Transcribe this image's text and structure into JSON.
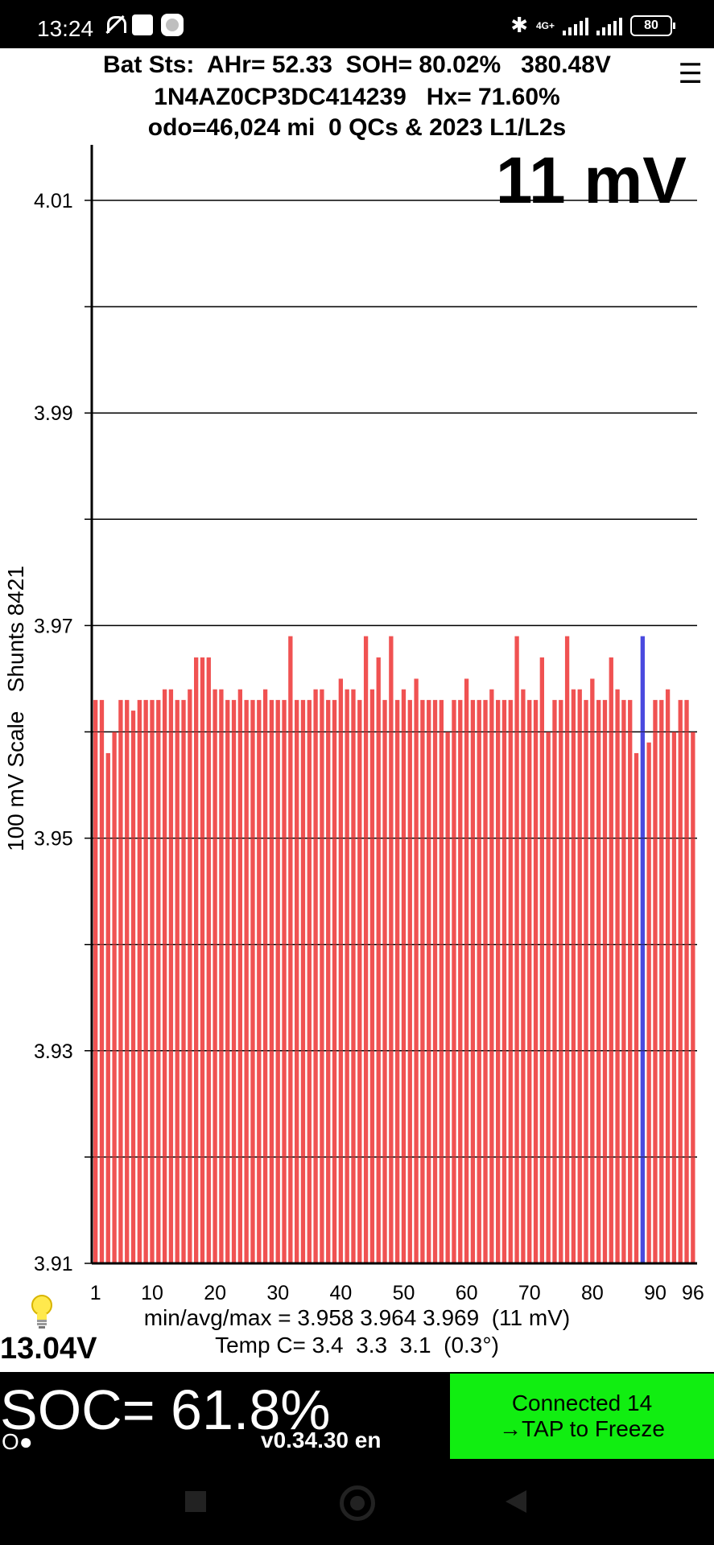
{
  "status_bar": {
    "time": "13:24",
    "network": "4G+",
    "battery": "80"
  },
  "header": {
    "line1": "Bat Sts:  AHr= 52.33  SOH= 80.02%   380.48V",
    "line2": "1N4AZ0CP3DC414239   Hx= 71.60%",
    "line3": "odo=46,024 mi  0 QCs & 2023 L1/L2s",
    "menu_icon": "☰"
  },
  "cell_spread": "11 mV",
  "y_axis_title": "100 mV Scale   Shunts 8421",
  "chart_data": {
    "type": "bar",
    "ylim": [
      3.91,
      4.015
    ],
    "yticks": [
      "4.01",
      "3.99",
      "3.97",
      "3.95",
      "3.93",
      "3.91"
    ],
    "ytick_values": [
      4.01,
      3.99,
      3.97,
      3.95,
      3.93,
      3.91
    ],
    "gridlines": [
      4.01,
      4.0,
      3.99,
      3.98,
      3.97,
      3.96,
      3.95,
      3.94,
      3.93,
      3.92,
      3.91
    ],
    "xticks": [
      "1",
      "10",
      "20",
      "30",
      "40",
      "50",
      "60",
      "70",
      "80",
      "90",
      "96"
    ],
    "xtick_values": [
      1,
      10,
      20,
      30,
      40,
      50,
      60,
      70,
      80,
      90,
      96
    ],
    "bar_color": "#f05252",
    "highlight_color": "#4a4adf",
    "highlight_cell": 88,
    "values": [
      3.963,
      3.963,
      3.958,
      3.96,
      3.963,
      3.963,
      3.962,
      3.963,
      3.963,
      3.963,
      3.963,
      3.964,
      3.964,
      3.963,
      3.963,
      3.964,
      3.967,
      3.967,
      3.967,
      3.964,
      3.964,
      3.963,
      3.963,
      3.964,
      3.963,
      3.963,
      3.963,
      3.964,
      3.963,
      3.963,
      3.963,
      3.969,
      3.963,
      3.963,
      3.963,
      3.964,
      3.964,
      3.963,
      3.963,
      3.965,
      3.964,
      3.964,
      3.963,
      3.969,
      3.964,
      3.967,
      3.963,
      3.969,
      3.963,
      3.964,
      3.963,
      3.965,
      3.963,
      3.963,
      3.963,
      3.963,
      3.96,
      3.963,
      3.963,
      3.965,
      3.963,
      3.963,
      3.963,
      3.964,
      3.963,
      3.963,
      3.963,
      3.969,
      3.964,
      3.963,
      3.963,
      3.967,
      3.96,
      3.963,
      3.963,
      3.969,
      3.964,
      3.964,
      3.963,
      3.965,
      3.963,
      3.963,
      3.967,
      3.964,
      3.963,
      3.963,
      3.958,
      3.969,
      3.959,
      3.963,
      3.963,
      3.964,
      3.96,
      3.963,
      3.963,
      3.96
    ]
  },
  "stats": {
    "minavgmax": "min/avg/max = 3.958 3.964 3.969  (11 mV)",
    "temp": "Temp C= 3.4  3.3  3.1  (0.3°)"
  },
  "aux_voltage": "13.04V",
  "soc": "SOC= 61.8%",
  "indicator": "O●",
  "version": "v0.34.30 en",
  "connect_button": {
    "line1": "Connected 14",
    "line2": "→TAP to Freeze",
    "color": "#11ee11"
  }
}
